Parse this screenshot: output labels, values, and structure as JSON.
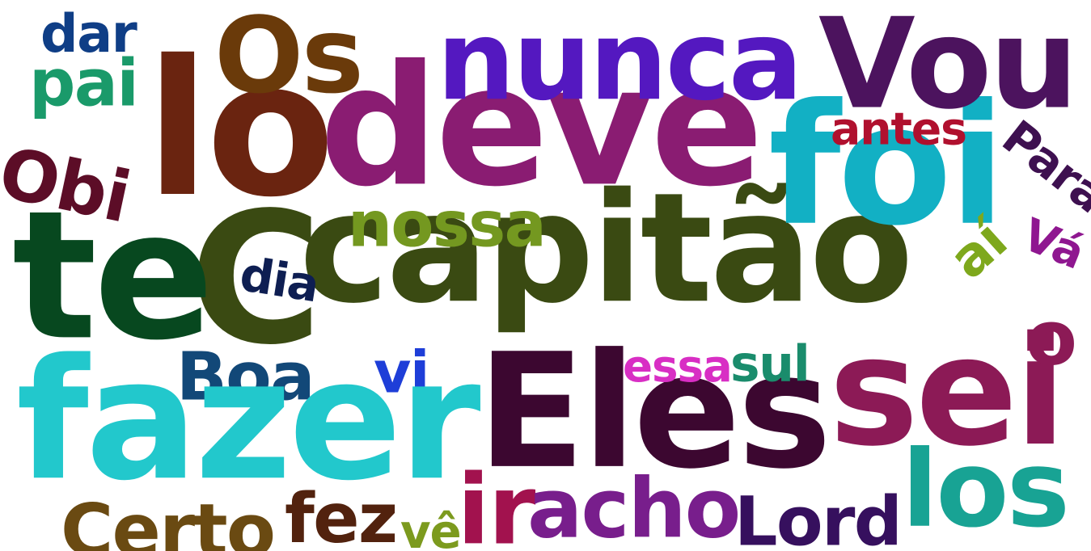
{
  "cloud": {
    "words": [
      {
        "text": "capitão",
        "color": "#3a4a12"
      },
      {
        "text": "C",
        "color": "#3a4a12"
      },
      {
        "text": "te",
        "color": "#07481f"
      },
      {
        "text": "lo",
        "color": "#6a2410"
      },
      {
        "text": "deve",
        "color": "#8a1c72"
      },
      {
        "text": "foi",
        "color": "#12b0c4"
      },
      {
        "text": "Vou",
        "color": "#4c135e"
      },
      {
        "text": "nunca",
        "color": "#5418c0"
      },
      {
        "text": "Os",
        "color": "#6a3a0a"
      },
      {
        "text": "dar",
        "color": "#0f3e86"
      },
      {
        "text": "pai",
        "color": "#1a9a6a"
      },
      {
        "text": "Obi",
        "color": "#5c0d27"
      },
      {
        "text": "antes",
        "color": "#b0102e"
      },
      {
        "text": "Para",
        "color": "#3e1050"
      },
      {
        "text": "nossa",
        "color": "#749820"
      },
      {
        "text": "dia",
        "color": "#0e1e52"
      },
      {
        "text": "aí",
        "color": "#7ea81c"
      },
      {
        "text": "Vá",
        "color": "#8f1790"
      },
      {
        "text": "Boa",
        "color": "#124878"
      },
      {
        "text": "vi",
        "color": "#1e3ed8"
      },
      {
        "text": "fazer",
        "color": "#22c8cc"
      },
      {
        "text": "Eles",
        "color": "#3c0730"
      },
      {
        "text": "sei",
        "color": "#8c1a56"
      },
      {
        "text": "essa",
        "color": "#d82ec4"
      },
      {
        "text": "sul",
        "color": "#1a8c6c"
      },
      {
        "text": "los",
        "color": "#18a394"
      },
      {
        "text": "ir",
        "color": "#a2124e"
      },
      {
        "text": "acho",
        "color": "#781e8c"
      },
      {
        "text": "Lord",
        "color": "#36105e"
      },
      {
        "text": "Certo",
        "color": "#6a4a12"
      },
      {
        "text": "fez",
        "color": "#52220e"
      },
      {
        "text": "vê",
        "color": "#7c9a1e"
      },
      {
        "text": "o",
        "color": "#8c1a56"
      }
    ]
  }
}
